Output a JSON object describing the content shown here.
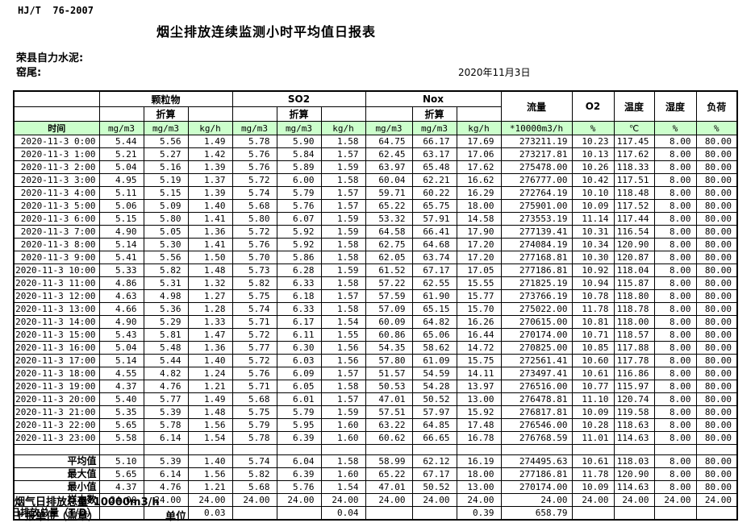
{
  "meta": {
    "standard": "HJ/T  76-2007",
    "title": "烟尘排放连续监测小时平均值日报表",
    "company": "荣县自力水泥:",
    "location": "窑尾:",
    "date": "2020年11月3日"
  },
  "colors": {
    "header_green": "#ccffcc",
    "grid": "#000000"
  },
  "table": {
    "time_label": "时间",
    "zhesuan_label": "折算",
    "groups": [
      {
        "label": "颗粒物"
      },
      {
        "label": "SO2"
      },
      {
        "label": "Nox"
      }
    ],
    "single_headers": [
      "流量",
      "O2",
      "温度",
      "湿度",
      "负荷"
    ],
    "unit_row": [
      "mg/m3",
      "mg/m3",
      "kg/h",
      "mg/m3",
      "mg/m3",
      "kg/h",
      "mg/m3",
      "mg/m3",
      "kg/h",
      "*10000m3/h",
      "%",
      "℃",
      "%",
      "%"
    ],
    "rows": [
      {
        "time": "2020-11-3 0:00",
        "values": [
          "5.44",
          "5.56",
          "1.49",
          "5.78",
          "5.90",
          "1.58",
          "64.75",
          "66.17",
          "17.69",
          "273211.19",
          "10.23",
          "117.45",
          "8.00",
          "80.00"
        ]
      },
      {
        "time": "2020-11-3 1:00",
        "values": [
          "5.21",
          "5.27",
          "1.42",
          "5.76",
          "5.84",
          "1.57",
          "62.45",
          "63.17",
          "17.06",
          "273217.81",
          "10.13",
          "117.62",
          "8.00",
          "80.00"
        ]
      },
      {
        "time": "2020-11-3 2:00",
        "values": [
          "5.04",
          "5.16",
          "1.39",
          "5.76",
          "5.89",
          "1.59",
          "63.97",
          "65.48",
          "17.62",
          "275478.00",
          "10.26",
          "118.33",
          "8.00",
          "80.00"
        ]
      },
      {
        "time": "2020-11-3 3:00",
        "values": [
          "4.95",
          "5.19",
          "1.37",
          "5.72",
          "6.00",
          "1.58",
          "60.04",
          "62.21",
          "16.62",
          "276777.00",
          "10.42",
          "117.51",
          "8.00",
          "80.00"
        ]
      },
      {
        "time": "2020-11-3 4:00",
        "values": [
          "5.11",
          "5.15",
          "1.39",
          "5.74",
          "5.79",
          "1.57",
          "59.71",
          "60.22",
          "16.29",
          "272764.19",
          "10.10",
          "118.48",
          "8.00",
          "80.00"
        ]
      },
      {
        "time": "2020-11-3 5:00",
        "values": [
          "5.06",
          "5.09",
          "1.40",
          "5.68",
          "5.76",
          "1.57",
          "65.22",
          "65.75",
          "18.00",
          "275901.00",
          "10.09",
          "117.52",
          "8.00",
          "80.00"
        ]
      },
      {
        "time": "2020-11-3 6:00",
        "values": [
          "5.15",
          "5.80",
          "1.41",
          "5.80",
          "6.07",
          "1.59",
          "53.32",
          "57.91",
          "14.58",
          "273553.19",
          "11.14",
          "117.44",
          "8.00",
          "80.00"
        ]
      },
      {
        "time": "2020-11-3 7:00",
        "values": [
          "4.90",
          "5.05",
          "1.36",
          "5.72",
          "5.92",
          "1.59",
          "64.58",
          "66.41",
          "17.90",
          "277139.41",
          "10.31",
          "116.54",
          "8.00",
          "80.00"
        ]
      },
      {
        "time": "2020-11-3 8:00",
        "values": [
          "5.14",
          "5.30",
          "1.41",
          "5.76",
          "5.92",
          "1.58",
          "62.75",
          "64.68",
          "17.20",
          "274084.19",
          "10.34",
          "120.90",
          "8.00",
          "80.00"
        ]
      },
      {
        "time": "2020-11-3 9:00",
        "values": [
          "5.41",
          "5.56",
          "1.50",
          "5.70",
          "5.86",
          "1.58",
          "62.05",
          "63.74",
          "17.20",
          "277168.81",
          "10.30",
          "120.87",
          "8.00",
          "80.00"
        ]
      },
      {
        "time": "2020-11-3 10:00",
        "values": [
          "5.33",
          "5.82",
          "1.48",
          "5.73",
          "6.28",
          "1.59",
          "61.52",
          "67.17",
          "17.05",
          "277186.81",
          "10.92",
          "118.04",
          "8.00",
          "80.00"
        ]
      },
      {
        "time": "2020-11-3 11:00",
        "values": [
          "4.86",
          "5.31",
          "1.32",
          "5.82",
          "6.33",
          "1.58",
          "57.22",
          "62.55",
          "15.55",
          "271825.19",
          "10.94",
          "115.87",
          "8.00",
          "80.00"
        ]
      },
      {
        "time": "2020-11-3 12:00",
        "values": [
          "4.63",
          "4.98",
          "1.27",
          "5.75",
          "6.18",
          "1.57",
          "57.59",
          "61.90",
          "15.77",
          "273766.19",
          "10.78",
          "118.80",
          "8.00",
          "80.00"
        ]
      },
      {
        "time": "2020-11-3 13:00",
        "values": [
          "4.66",
          "5.36",
          "1.28",
          "5.74",
          "6.33",
          "1.58",
          "57.09",
          "65.15",
          "15.70",
          "275022.00",
          "11.78",
          "118.78",
          "8.00",
          "80.00"
        ]
      },
      {
        "time": "2020-11-3 14:00",
        "values": [
          "4.90",
          "5.29",
          "1.33",
          "5.71",
          "6.17",
          "1.54",
          "60.09",
          "64.82",
          "16.26",
          "270615.00",
          "10.81",
          "118.00",
          "8.00",
          "80.00"
        ]
      },
      {
        "time": "2020-11-3 15:00",
        "values": [
          "5.43",
          "5.81",
          "1.47",
          "5.72",
          "6.11",
          "1.55",
          "60.86",
          "65.06",
          "16.44",
          "270174.00",
          "10.71",
          "118.57",
          "8.00",
          "80.00"
        ]
      },
      {
        "time": "2020-11-3 16:00",
        "values": [
          "5.04",
          "5.48",
          "1.36",
          "5.77",
          "6.30",
          "1.56",
          "54.35",
          "58.62",
          "14.72",
          "270825.00",
          "10.85",
          "117.88",
          "8.00",
          "80.00"
        ]
      },
      {
        "time": "2020-11-3 17:00",
        "values": [
          "5.14",
          "5.44",
          "1.40",
          "5.72",
          "6.03",
          "1.56",
          "57.80",
          "61.09",
          "15.75",
          "272561.41",
          "10.60",
          "117.78",
          "8.00",
          "80.00"
        ]
      },
      {
        "time": "2020-11-3 18:00",
        "values": [
          "4.55",
          "4.82",
          "1.24",
          "5.76",
          "6.09",
          "1.57",
          "51.57",
          "54.59",
          "14.11",
          "273497.41",
          "10.61",
          "116.86",
          "8.00",
          "80.00"
        ]
      },
      {
        "time": "2020-11-3 19:00",
        "values": [
          "4.37",
          "4.76",
          "1.21",
          "5.71",
          "6.05",
          "1.58",
          "50.53",
          "54.28",
          "13.97",
          "276516.00",
          "10.77",
          "115.97",
          "8.00",
          "80.00"
        ]
      },
      {
        "time": "2020-11-3 20:00",
        "values": [
          "5.40",
          "5.77",
          "1.49",
          "5.68",
          "6.01",
          "1.57",
          "47.01",
          "50.52",
          "13.00",
          "276478.81",
          "11.10",
          "120.74",
          "8.00",
          "80.00"
        ]
      },
      {
        "time": "2020-11-3 21:00",
        "values": [
          "5.35",
          "5.39",
          "1.48",
          "5.75",
          "5.79",
          "1.59",
          "57.51",
          "57.97",
          "15.92",
          "276817.81",
          "10.09",
          "119.58",
          "8.00",
          "80.00"
        ]
      },
      {
        "time": "2020-11-3 22:00",
        "values": [
          "5.65",
          "5.78",
          "1.56",
          "5.79",
          "5.95",
          "1.60",
          "63.22",
          "64.85",
          "17.48",
          "276546.00",
          "10.28",
          "118.63",
          "8.00",
          "80.00"
        ]
      },
      {
        "time": "2020-11-3 23:00",
        "values": [
          "5.58",
          "6.14",
          "1.54",
          "5.78",
          "6.39",
          "1.60",
          "60.62",
          "66.65",
          "16.78",
          "276768.59",
          "11.01",
          "114.63",
          "8.00",
          "80.00"
        ]
      }
    ],
    "summary": [
      {
        "label": "平均值",
        "values": [
          "5.10",
          "5.39",
          "1.40",
          "5.74",
          "6.04",
          "1.58",
          "58.99",
          "62.12",
          "16.19",
          "274495.63",
          "10.61",
          "118.03",
          "8.00",
          "80.00"
        ]
      },
      {
        "label": "最大值",
        "values": [
          "5.65",
          "6.14",
          "1.56",
          "5.82",
          "6.39",
          "1.60",
          "65.22",
          "67.17",
          "18.00",
          "277186.81",
          "11.78",
          "120.90",
          "8.00",
          "80.00"
        ]
      },
      {
        "label": "最小值",
        "values": [
          "4.37",
          "4.76",
          "1.21",
          "5.68",
          "5.76",
          "1.54",
          "47.01",
          "50.52",
          "13.00",
          "270174.00",
          "10.09",
          "114.63",
          "8.00",
          "80.00"
        ]
      },
      {
        "label": "样本数",
        "values": [
          "24.00",
          "24.00",
          "24.00",
          "24.00",
          "24.00",
          "24.00",
          "24.00",
          "24.00",
          "24.00",
          "24.00",
          "24.00",
          "24.00",
          "24.00",
          "24.00"
        ]
      },
      {
        "label": "日排放总量（T/D）",
        "values": [
          "",
          "",
          "0.03",
          "",
          "",
          "0.04",
          "",
          "",
          "0.39",
          "658.79",
          "",
          "",
          "",
          ""
        ]
      }
    ]
  },
  "footer": {
    "line1": "烟气日排放总量*10000m3/h",
    "line2": "上报单位（盖章）",
    "line3": "单位"
  }
}
